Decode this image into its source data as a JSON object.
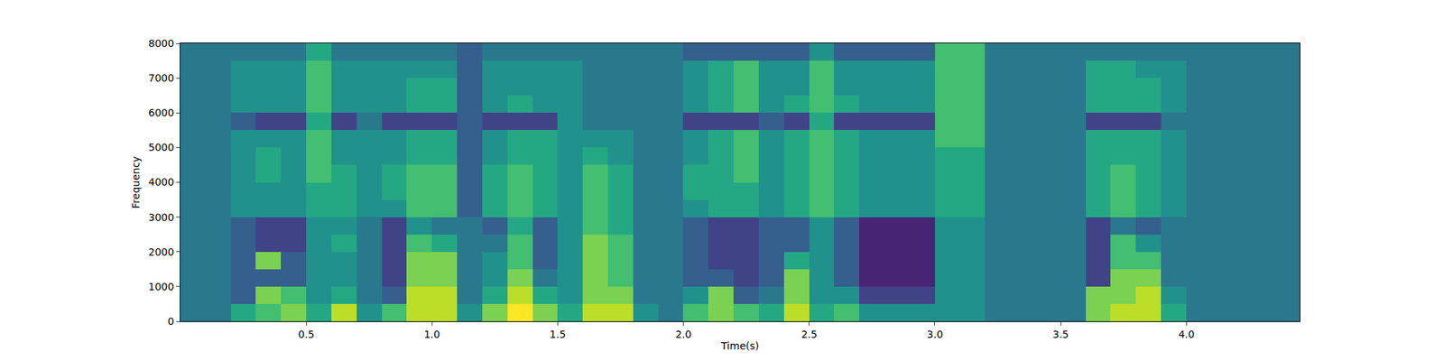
{
  "chart_data": {
    "type": "heatmap",
    "x_label": "Time(s)",
    "y_label": "Frequency",
    "color": "Viridis",
    "zlim": [
      0,
      10
    ],
    "xlim": [
      0,
      4.45
    ],
    "ylim": [
      0,
      8000
    ],
    "xticks": [
      0.5,
      {
        "value": 1,
        "label": "1.0"
      },
      1.5,
      {
        "value": 2,
        "label": "2.0"
      },
      2.5,
      {
        "value": 3,
        "label": "3.0"
      },
      3.5,
      {
        "value": 4,
        "label": "4.0"
      }
    ],
    "yticks": [
      0,
      1000,
      2000,
      3000,
      4000,
      5000,
      6000,
      7000,
      8000
    ],
    "x": [
      0.05,
      0.15,
      0.25,
      0.35,
      0.45,
      0.55,
      0.65,
      0.75,
      0.85,
      0.95,
      1.05,
      1.15,
      1.25,
      1.35,
      1.45,
      1.55,
      1.65,
      1.75,
      1.85,
      1.95,
      2.05,
      2.15,
      2.25,
      2.35,
      2.45,
      2.55,
      2.65,
      2.75,
      2.85,
      2.95,
      3.05,
      3.15,
      3.25,
      3.35,
      3.45,
      3.55,
      3.65,
      3.75,
      3.85,
      3.95,
      4.05,
      4.15,
      4.25,
      4.35,
      4.45
    ],
    "y": [
      250,
      750,
      1250,
      1750,
      2250,
      2750,
      3250,
      3750,
      4250,
      4750,
      5250,
      5750,
      6250,
      6750,
      7250,
      7750
    ],
    "cells": [
      [
        4,
        4,
        4,
        4,
        4,
        4,
        4,
        4,
        4,
        4,
        4,
        4,
        4,
        4,
        4,
        4
      ],
      [
        4,
        4,
        4,
        4,
        4,
        4,
        4,
        4,
        4,
        4,
        4,
        4,
        4,
        4,
        4,
        4
      ],
      [
        6,
        3,
        3,
        3,
        3,
        3,
        5,
        5,
        5,
        5,
        5,
        3,
        5,
        5,
        5,
        4
      ],
      [
        7,
        8,
        3,
        8,
        2,
        2,
        5,
        5,
        6,
        6,
        5,
        2,
        5,
        5,
        5,
        4
      ],
      [
        8,
        7,
        3,
        3,
        2,
        2,
        5,
        5,
        5,
        5,
        5,
        2,
        5,
        5,
        5,
        4
      ],
      [
        6,
        5,
        5,
        5,
        5,
        5,
        6,
        6,
        7,
        7,
        7,
        6,
        7,
        7,
        7,
        6
      ],
      [
        9,
        6,
        5,
        5,
        6,
        5,
        6,
        6,
        6,
        5,
        5,
        2,
        5,
        5,
        5,
        4
      ],
      [
        5,
        4,
        4,
        4,
        4,
        4,
        5,
        5,
        5,
        5,
        5,
        4,
        5,
        5,
        5,
        4
      ],
      [
        7,
        3,
        2,
        2,
        2,
        2,
        5,
        6,
        6,
        5,
        5,
        2,
        5,
        5,
        5,
        4
      ],
      [
        9,
        9,
        8,
        8,
        7,
        5,
        7,
        7,
        7,
        6,
        6,
        2,
        6,
        6,
        5,
        4
      ],
      [
        9,
        9,
        8,
        8,
        6,
        4,
        7,
        7,
        7,
        6,
        6,
        2,
        6,
        6,
        5,
        4
      ],
      [
        5,
        4,
        4,
        4,
        4,
        4,
        3,
        3,
        3,
        3,
        3,
        3,
        3,
        3,
        3,
        3
      ],
      [
        8,
        6,
        5,
        5,
        4,
        3,
        6,
        6,
        6,
        5,
        5,
        2,
        5,
        5,
        5,
        4
      ],
      [
        10,
        9,
        8,
        7,
        7,
        6,
        7,
        7,
        7,
        6,
        6,
        2,
        6,
        5,
        5,
        4
      ],
      [
        8,
        6,
        4,
        3,
        3,
        3,
        6,
        6,
        6,
        6,
        6,
        2,
        5,
        5,
        5,
        4
      ],
      [
        6,
        5,
        5,
        5,
        5,
        5,
        5,
        5,
        5,
        5,
        5,
        5,
        5,
        5,
        5,
        4
      ],
      [
        9,
        8,
        8,
        8,
        8,
        7,
        7,
        7,
        7,
        6,
        5,
        4,
        4,
        4,
        4,
        4
      ],
      [
        9,
        8,
        7,
        7,
        7,
        6,
        6,
        6,
        6,
        5,
        5,
        4,
        4,
        4,
        4,
        4
      ],
      [
        5,
        4,
        4,
        4,
        4,
        4,
        4,
        4,
        4,
        4,
        4,
        4,
        4,
        4,
        4,
        4
      ],
      [
        4,
        4,
        4,
        4,
        4,
        4,
        4,
        4,
        4,
        4,
        4,
        4,
        4,
        4,
        4,
        4
      ],
      [
        7,
        5,
        3,
        3,
        3,
        3,
        5,
        6,
        6,
        5,
        5,
        2,
        5,
        5,
        5,
        3
      ],
      [
        8,
        8,
        3,
        2,
        2,
        2,
        6,
        6,
        6,
        6,
        6,
        2,
        6,
        6,
        6,
        3
      ],
      [
        7,
        3,
        2,
        2,
        2,
        2,
        6,
        6,
        7,
        7,
        7,
        2,
        7,
        7,
        7,
        3
      ],
      [
        6,
        4,
        3,
        3,
        3,
        3,
        5,
        5,
        5,
        5,
        5,
        3,
        5,
        5,
        5,
        3
      ],
      [
        9,
        8,
        8,
        6,
        3,
        3,
        6,
        6,
        6,
        6,
        6,
        2,
        6,
        5,
        5,
        3
      ],
      [
        6,
        5,
        5,
        5,
        5,
        5,
        7,
        7,
        7,
        7,
        7,
        6,
        7,
        7,
        7,
        5
      ],
      [
        7,
        5,
        3,
        3,
        3,
        3,
        6,
        6,
        6,
        6,
        6,
        2,
        6,
        5,
        5,
        3
      ],
      [
        5,
        2,
        1,
        1,
        1,
        1,
        5,
        5,
        5,
        5,
        5,
        2,
        5,
        5,
        5,
        3
      ],
      [
        5,
        2,
        1,
        1,
        1,
        1,
        5,
        5,
        5,
        5,
        5,
        2,
        5,
        5,
        5,
        3
      ],
      [
        5,
        2,
        1,
        1,
        1,
        1,
        5,
        5,
        5,
        5,
        5,
        2,
        5,
        5,
        5,
        3
      ],
      [
        5,
        5,
        5,
        5,
        5,
        5,
        6,
        6,
        6,
        6,
        7,
        7,
        7,
        7,
        7,
        7
      ],
      [
        5,
        5,
        5,
        5,
        5,
        5,
        6,
        6,
        6,
        6,
        7,
        7,
        7,
        7,
        7,
        7
      ],
      [
        4,
        4,
        4,
        4,
        4,
        4,
        4,
        4,
        4,
        4,
        4,
        4,
        4,
        4,
        4,
        4
      ],
      [
        4,
        4,
        4,
        4,
        4,
        4,
        4,
        4,
        4,
        4,
        4,
        4,
        4,
        4,
        4,
        4
      ],
      [
        4,
        4,
        4,
        4,
        4,
        4,
        4,
        4,
        4,
        4,
        4,
        4,
        4,
        4,
        4,
        4
      ],
      [
        4,
        4,
        4,
        4,
        4,
        4,
        4,
        4,
        4,
        4,
        4,
        4,
        4,
        4,
        4,
        4
      ],
      [
        8,
        8,
        2,
        2,
        2,
        2,
        6,
        6,
        6,
        6,
        6,
        2,
        6,
        6,
        6,
        4
      ],
      [
        9,
        8,
        8,
        7,
        7,
        4,
        7,
        7,
        7,
        6,
        6,
        2,
        6,
        6,
        6,
        4
      ],
      [
        9,
        9,
        8,
        7,
        5,
        3,
        6,
        6,
        6,
        6,
        6,
        2,
        6,
        6,
        5,
        4
      ],
      [
        6,
        5,
        4,
        4,
        4,
        4,
        5,
        5,
        5,
        5,
        5,
        4,
        5,
        5,
        5,
        4
      ],
      [
        4,
        4,
        4,
        4,
        4,
        4,
        4,
        4,
        4,
        4,
        4,
        4,
        4,
        4,
        4,
        4
      ],
      [
        4,
        4,
        4,
        4,
        4,
        4,
        4,
        4,
        4,
        4,
        4,
        4,
        4,
        4,
        4,
        4
      ],
      [
        4,
        4,
        4,
        4,
        4,
        4,
        4,
        4,
        4,
        4,
        4,
        4,
        4,
        4,
        4,
        4
      ],
      [
        4,
        4,
        4,
        4,
        4,
        4,
        4,
        4,
        4,
        4,
        4,
        4,
        4,
        4,
        4,
        4
      ],
      [
        4,
        4,
        4,
        4,
        4,
        4,
        4,
        4,
        4,
        4,
        4,
        4,
        4,
        4,
        4,
        4
      ]
    ]
  }
}
